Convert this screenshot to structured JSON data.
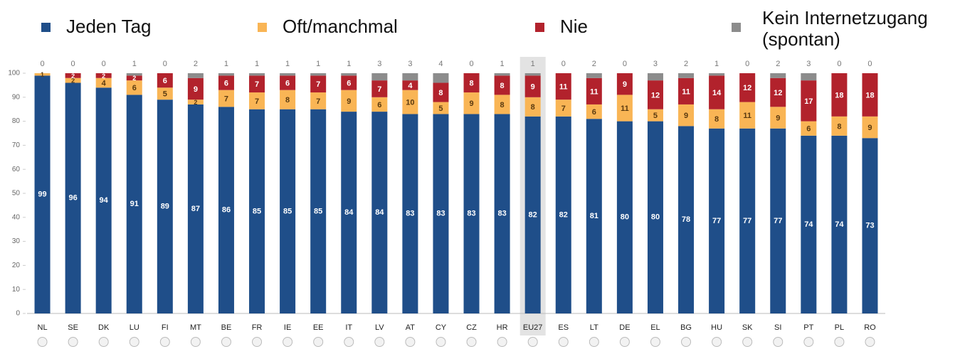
{
  "chart_data": {
    "type": "stacked-bar",
    "categories": [
      "NL",
      "SE",
      "DK",
      "LU",
      "FI",
      "MT",
      "BE",
      "FR",
      "IE",
      "EE",
      "IT",
      "LV",
      "AT",
      "CY",
      "CZ",
      "HR",
      "EU27",
      "ES",
      "LT",
      "DE",
      "EL",
      "BG",
      "HU",
      "SK",
      "SI",
      "PT",
      "PL",
      "RO"
    ],
    "highlight": "EU27",
    "series": [
      {
        "name": "Jeden Tag",
        "color": "#1f4e89",
        "values": [
          99,
          96,
          94,
          91,
          89,
          87,
          86,
          85,
          85,
          85,
          84,
          84,
          83,
          83,
          83,
          83,
          82,
          82,
          81,
          80,
          80,
          78,
          77,
          77,
          77,
          74,
          74,
          73
        ]
      },
      {
        "name": "Oft/manchmal",
        "color": "#f9b555",
        "values": [
          1,
          2,
          4,
          6,
          5,
          2,
          7,
          7,
          8,
          7,
          9,
          6,
          10,
          5,
          9,
          8,
          8,
          7,
          6,
          11,
          5,
          9,
          8,
          11,
          9,
          6,
          8,
          9
        ]
      },
      {
        "name": "Nie",
        "color": "#b2222c",
        "values": [
          0,
          2,
          2,
          2,
          6,
          9,
          6,
          7,
          6,
          7,
          6,
          7,
          4,
          8,
          8,
          8,
          9,
          11,
          11,
          9,
          12,
          11,
          14,
          12,
          12,
          17,
          18,
          18
        ]
      },
      {
        "name": "Kein Internetzugang (spontan)",
        "color": "#8c8c8c",
        "values": [
          0,
          0,
          0,
          1,
          0,
          2,
          1,
          1,
          1,
          1,
          1,
          3,
          3,
          4,
          0,
          1,
          1,
          0,
          2,
          0,
          3,
          2,
          1,
          0,
          2,
          3,
          0,
          0
        ]
      }
    ],
    "ylim": [
      0,
      100
    ],
    "yticks": [
      0,
      10,
      20,
      30,
      40,
      50,
      60,
      70,
      80,
      90,
      100
    ]
  }
}
